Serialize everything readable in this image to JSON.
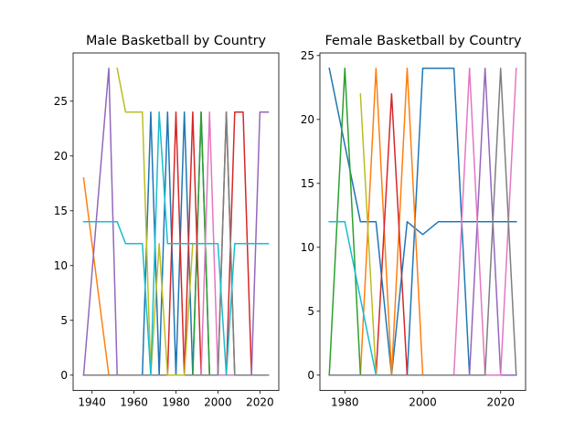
{
  "chart_data": [
    {
      "type": "line",
      "title": "Male Basketball by Country",
      "xlabel": "",
      "ylabel": "",
      "xlim": [
        1931,
        2029
      ],
      "ylim": [
        -1.4,
        29.4
      ],
      "xticks": [
        1940,
        1960,
        1980,
        2000,
        2020
      ],
      "yticks": [
        0,
        5,
        10,
        15,
        20,
        25
      ],
      "grid": false,
      "series": [
        {
          "color": "#1f77b4",
          "x": [
            1936,
            1948,
            1952,
            1956,
            1960,
            1964,
            1968,
            1972,
            1976,
            1980,
            1984,
            1988,
            1992,
            1996,
            2000,
            2004,
            2008,
            2012,
            2016,
            2020,
            2024
          ],
          "y": [
            0,
            0,
            0,
            0,
            0,
            0,
            24,
            0,
            24,
            0,
            24,
            0,
            24,
            0,
            0,
            0,
            0,
            0,
            0,
            0,
            0
          ]
        },
        {
          "color": "#ff7f0e",
          "x": [
            1936,
            1948,
            1952,
            1956,
            1960,
            1964,
            1968,
            1972,
            1976,
            1980,
            1984,
            1988,
            1992,
            1996,
            2000,
            2004,
            2008,
            2012,
            2016,
            2020,
            2024
          ],
          "y": [
            18,
            0,
            0,
            0,
            0,
            0,
            0,
            0,
            0,
            0,
            0,
            0,
            0,
            0,
            0,
            0,
            0,
            0,
            0,
            0,
            0
          ]
        },
        {
          "color": "#2ca02c",
          "x": [
            1936,
            1948,
            1952,
            1956,
            1960,
            1964,
            1968,
            1972,
            1976,
            1980,
            1984,
            1988,
            1992,
            1996,
            2000,
            2004,
            2008,
            2012,
            2016,
            2020,
            2024
          ],
          "y": [
            0,
            0,
            0,
            0,
            0,
            0,
            0,
            0,
            0,
            0,
            0,
            0,
            24,
            0,
            0,
            0,
            0,
            0,
            0,
            0,
            0
          ]
        },
        {
          "color": "#d62728",
          "x": [
            1936,
            1948,
            1952,
            1956,
            1960,
            1964,
            1968,
            1972,
            1976,
            1980,
            1984,
            1988,
            1992,
            1996,
            2000,
            2004,
            2008,
            2012,
            2016,
            2020,
            2024
          ],
          "y": [
            0,
            0,
            0,
            0,
            0,
            0,
            0,
            0,
            0,
            24,
            0,
            24,
            0,
            0,
            0,
            0,
            24,
            24,
            0,
            0,
            0
          ]
        },
        {
          "color": "#9467bd",
          "x": [
            1936,
            1948,
            1952,
            1956,
            1960,
            1964,
            1968,
            1972,
            1976,
            1980,
            1984,
            1988,
            1992,
            1996,
            2000,
            2004,
            2008,
            2012,
            2016,
            2020,
            2024
          ],
          "y": [
            0,
            28,
            0,
            0,
            0,
            0,
            0,
            0,
            0,
            0,
            0,
            0,
            0,
            0,
            0,
            0,
            0,
            0,
            0,
            24,
            24
          ]
        },
        {
          "color": "#8c564b",
          "x": [
            1936,
            1948,
            1952,
            1956,
            1960,
            1964,
            1968,
            1972,
            1976,
            1980,
            1984,
            1988,
            1992,
            1996,
            2000,
            2004,
            2008,
            2012,
            2016,
            2020,
            2024
          ],
          "y": [
            0,
            0,
            0,
            0,
            0,
            0,
            0,
            0,
            0,
            0,
            0,
            0,
            0,
            0,
            0,
            24,
            0,
            0,
            0,
            0,
            0
          ]
        },
        {
          "color": "#e377c2",
          "x": [
            1936,
            1948,
            1952,
            1956,
            1960,
            1964,
            1968,
            1972,
            1976,
            1980,
            1984,
            1988,
            1992,
            1996,
            2000,
            2004,
            2008,
            2012,
            2016,
            2020,
            2024
          ],
          "y": [
            0,
            0,
            0,
            0,
            0,
            0,
            0,
            0,
            0,
            0,
            0,
            0,
            0,
            24,
            0,
            0,
            0,
            0,
            0,
            0,
            0
          ]
        },
        {
          "color": "#7f7f7f",
          "x": [
            1936,
            1948,
            1952,
            1956,
            1960,
            1964,
            1968,
            1972,
            1976,
            1980,
            1984,
            1988,
            1992,
            1996,
            2000,
            2004,
            2008,
            2012,
            2016,
            2020,
            2024
          ],
          "y": [
            0,
            0,
            0,
            0,
            0,
            0,
            0,
            0,
            0,
            0,
            0,
            0,
            0,
            0,
            0,
            24,
            0,
            0,
            0,
            0,
            0
          ]
        },
        {
          "color": "#bcbd22",
          "x": [
            1952,
            1956,
            1960,
            1964,
            1968,
            1972,
            1976,
            1980,
            1984,
            1988
          ],
          "y": [
            28,
            24,
            24,
            24,
            0,
            12,
            0,
            0,
            0,
            12
          ]
        },
        {
          "color": "#17becf",
          "x": [
            1936,
            1948,
            1952,
            1956,
            1960,
            1964,
            1968,
            1972,
            1976,
            1980,
            1984,
            1988,
            1992,
            1996,
            2000,
            2004,
            2008,
            2012,
            2016,
            2020,
            2024
          ],
          "y": [
            14,
            14,
            14,
            12,
            12,
            12,
            0,
            24,
            12,
            12,
            12,
            12,
            12,
            12,
            12,
            0,
            12,
            12,
            12,
            12,
            12
          ]
        }
      ]
    },
    {
      "type": "line",
      "title": "Female Basketball by Country",
      "xlabel": "",
      "ylabel": "",
      "xlim": [
        1973.6,
        2026.4
      ],
      "ylim": [
        -1.2,
        25.2
      ],
      "xticks": [
        1980,
        2000,
        2020
      ],
      "yticks": [
        0,
        5,
        10,
        15,
        20,
        25
      ],
      "grid": false,
      "series": [
        {
          "color": "#1f77b4",
          "x": [
            1976,
            1980,
            1984,
            1988,
            1992,
            1996,
            2000,
            2004,
            2008,
            2012,
            2016,
            2020,
            2024
          ],
          "y": [
            24,
            18,
            12,
            12,
            0,
            12,
            11,
            12,
            12,
            12,
            12,
            12,
            12
          ]
        },
        {
          "color": "#1f77b4",
          "x": [
            1976,
            1980,
            1984,
            1988,
            1992,
            1996,
            2000,
            2004,
            2008,
            2012,
            2016,
            2020,
            2024
          ],
          "y": [
            0,
            0,
            0,
            0,
            0,
            0,
            24,
            24,
            24,
            0,
            0,
            0,
            0
          ]
        },
        {
          "color": "#ff7f0e",
          "x": [
            1976,
            1980,
            1984,
            1988,
            1992,
            1996,
            2000,
            2004,
            2008,
            2012,
            2016,
            2020,
            2024
          ],
          "y": [
            0,
            0,
            0,
            24,
            0,
            24,
            0,
            0,
            0,
            0,
            0,
            0,
            0
          ]
        },
        {
          "color": "#2ca02c",
          "x": [
            1976,
            1980,
            1984,
            1988,
            1992,
            1996,
            2000,
            2004,
            2008,
            2012,
            2016,
            2020,
            2024
          ],
          "y": [
            0,
            24,
            0,
            0,
            0,
            0,
            0,
            0,
            0,
            0,
            0,
            0,
            0
          ]
        },
        {
          "color": "#d62728",
          "x": [
            1976,
            1980,
            1984,
            1988,
            1992,
            1996,
            2000,
            2004,
            2008,
            2012,
            2016,
            2020,
            2024
          ],
          "y": [
            0,
            0,
            0,
            0,
            22,
            0,
            0,
            0,
            0,
            0,
            0,
            0,
            0
          ]
        },
        {
          "color": "#9467bd",
          "x": [
            1976,
            1980,
            1984,
            1988,
            1992,
            1996,
            2000,
            2004,
            2008,
            2012,
            2016,
            2020,
            2024
          ],
          "y": [
            0,
            0,
            0,
            0,
            0,
            0,
            0,
            0,
            0,
            0,
            24,
            0,
            0
          ]
        },
        {
          "color": "#e377c2",
          "x": [
            1976,
            1980,
            1984,
            1988,
            1992,
            1996,
            2000,
            2004,
            2008,
            2012,
            2016,
            2020,
            2024
          ],
          "y": [
            0,
            0,
            0,
            0,
            0,
            0,
            0,
            0,
            0,
            24,
            0,
            0,
            24
          ]
        },
        {
          "color": "#7f7f7f",
          "x": [
            1976,
            1980,
            1984,
            1988,
            1992,
            1996,
            2000,
            2004,
            2008,
            2012,
            2016,
            2020,
            2024
          ],
          "y": [
            0,
            0,
            0,
            0,
            0,
            0,
            0,
            0,
            0,
            0,
            0,
            24,
            0
          ]
        },
        {
          "color": "#bcbd22",
          "x": [
            1984,
            1988
          ],
          "y": [
            22,
            0
          ]
        },
        {
          "color": "#17becf",
          "x": [
            1976,
            1980,
            1984,
            1988
          ],
          "y": [
            12,
            12,
            6,
            0
          ]
        }
      ]
    }
  ]
}
